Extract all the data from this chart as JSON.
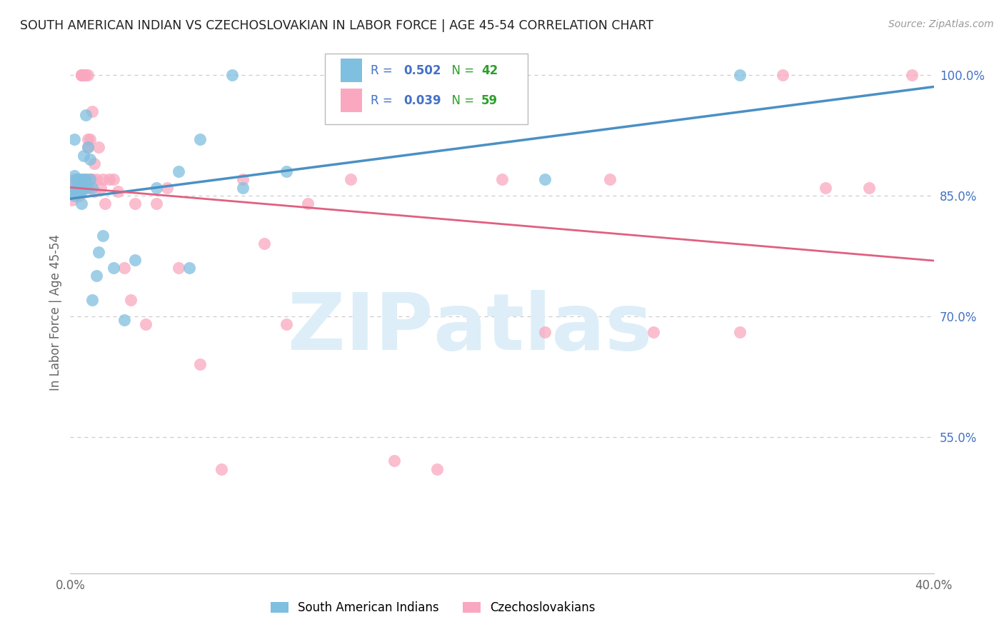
{
  "title": "SOUTH AMERICAN INDIAN VS CZECHOSLOVAKIAN IN LABOR FORCE | AGE 45-54 CORRELATION CHART",
  "source": "Source: ZipAtlas.com",
  "ylabel": "In Labor Force | Age 45-54",
  "xlim": [
    0.0,
    0.4
  ],
  "ylim": [
    0.38,
    1.03
  ],
  "xticks": [
    0.0,
    0.05,
    0.1,
    0.15,
    0.2,
    0.25,
    0.3,
    0.35,
    0.4
  ],
  "xtick_labels": [
    "0.0%",
    "",
    "",
    "",
    "",
    "",
    "",
    "",
    "40.0%"
  ],
  "ytick_labels_right": [
    "100.0%",
    "85.0%",
    "70.0%",
    "55.0%"
  ],
  "ytick_vals_right": [
    1.0,
    0.85,
    0.7,
    0.55
  ],
  "blue_r": 0.502,
  "blue_n": 42,
  "pink_r": 0.039,
  "pink_n": 59,
  "blue_color": "#7fbfdf",
  "pink_color": "#f9a8bf",
  "blue_line_color": "#4a90c4",
  "pink_line_color": "#e06080",
  "blue_x": [
    0.001,
    0.001,
    0.002,
    0.002,
    0.002,
    0.003,
    0.003,
    0.003,
    0.004,
    0.004,
    0.004,
    0.005,
    0.005,
    0.005,
    0.005,
    0.006,
    0.006,
    0.006,
    0.007,
    0.007,
    0.007,
    0.008,
    0.008,
    0.009,
    0.009,
    0.01,
    0.01,
    0.012,
    0.013,
    0.015,
    0.02,
    0.025,
    0.03,
    0.04,
    0.05,
    0.055,
    0.06,
    0.075,
    0.08,
    0.1,
    0.22,
    0.31
  ],
  "blue_y": [
    0.855,
    0.862,
    0.92,
    0.875,
    0.85,
    0.87,
    0.86,
    0.858,
    0.87,
    0.862,
    0.855,
    0.86,
    0.87,
    0.855,
    0.84,
    0.9,
    0.87,
    0.86,
    0.95,
    0.87,
    0.86,
    0.91,
    0.86,
    0.895,
    0.87,
    0.86,
    0.72,
    0.75,
    0.78,
    0.8,
    0.76,
    0.695,
    0.77,
    0.86,
    0.88,
    0.76,
    0.92,
    1.0,
    0.86,
    0.88,
    0.87,
    1.0
  ],
  "pink_x": [
    0.001,
    0.001,
    0.002,
    0.002,
    0.003,
    0.003,
    0.003,
    0.004,
    0.004,
    0.004,
    0.005,
    0.005,
    0.005,
    0.006,
    0.006,
    0.007,
    0.007,
    0.008,
    0.008,
    0.008,
    0.009,
    0.009,
    0.01,
    0.01,
    0.011,
    0.011,
    0.012,
    0.013,
    0.014,
    0.015,
    0.016,
    0.018,
    0.02,
    0.022,
    0.025,
    0.028,
    0.03,
    0.035,
    0.04,
    0.045,
    0.05,
    0.06,
    0.07,
    0.08,
    0.09,
    0.1,
    0.11,
    0.13,
    0.15,
    0.17,
    0.2,
    0.22,
    0.25,
    0.27,
    0.31,
    0.33,
    0.35,
    0.37,
    0.39
  ],
  "pink_y": [
    0.86,
    0.845,
    0.87,
    0.855,
    0.86,
    0.87,
    0.855,
    0.86,
    0.85,
    0.858,
    1.0,
    1.0,
    1.0,
    1.0,
    1.0,
    1.0,
    0.87,
    0.92,
    0.91,
    1.0,
    0.92,
    0.87,
    0.955,
    0.87,
    0.89,
    0.855,
    0.87,
    0.91,
    0.86,
    0.87,
    0.84,
    0.87,
    0.87,
    0.855,
    0.76,
    0.72,
    0.84,
    0.69,
    0.84,
    0.86,
    0.76,
    0.64,
    0.51,
    0.87,
    0.79,
    0.69,
    0.84,
    0.87,
    0.52,
    0.51,
    0.87,
    0.68,
    0.87,
    0.68,
    0.68,
    1.0,
    0.86,
    0.86,
    1.0
  ],
  "watermark_line1": "ZIP",
  "watermark_line2": "atlas",
  "watermark_color": "#ddeef8",
  "background_color": "#ffffff",
  "grid_color": "#cccccc"
}
